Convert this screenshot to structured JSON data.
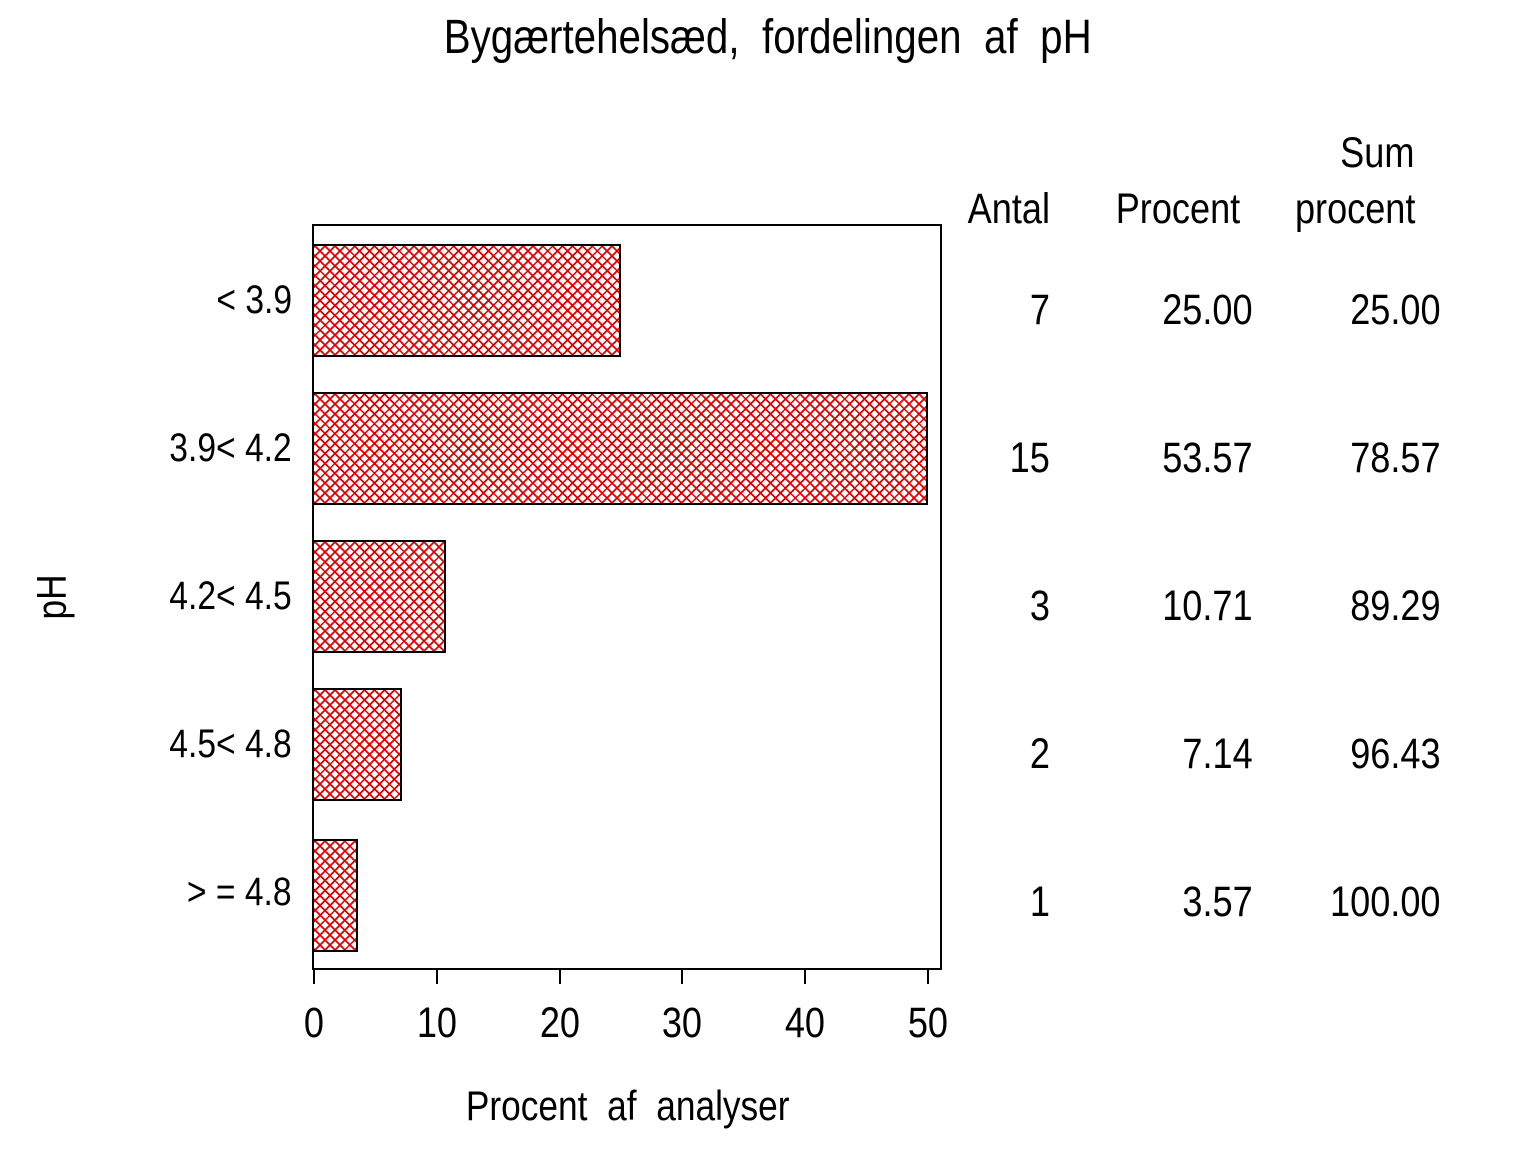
{
  "title": "Bygærtehelsæd, fordelingen af pH",
  "y_axis_title": "pH",
  "x_axis_title": "Procent af analyser",
  "table": {
    "header_sum_line1": "Sum",
    "header_antal": "Antal",
    "header_procent": "Procent",
    "header_sum_line2": "procent"
  },
  "rows": [
    {
      "category": "< 3.9",
      "antal": "7",
      "procent": "25.00",
      "sum": "25.00"
    },
    {
      "category": "3.9< 4.2",
      "antal": "15",
      "procent": "53.57",
      "sum": "78.57"
    },
    {
      "category": "4.2< 4.5",
      "antal": "3",
      "procent": "10.71",
      "sum": "89.29"
    },
    {
      "category": "4.5< 4.8",
      "antal": "2",
      "procent": "7.14",
      "sum": "96.43"
    },
    {
      "category": "> = 4.8",
      "antal": "1",
      "procent": "3.57",
      "sum": "100.00"
    }
  ],
  "chart_data": {
    "type": "bar",
    "orientation": "horizontal",
    "title": "Bygærtehelsæd, fordelingen af pH",
    "categories": [
      "< 3.9",
      "3.9< 4.2",
      "4.2< 4.5",
      "4.5< 4.8",
      "> = 4.8"
    ],
    "values": [
      25.0,
      53.57,
      10.71,
      7.14,
      3.57
    ],
    "series": [
      {
        "name": "Antal",
        "values": [
          7,
          15,
          3,
          2,
          1
        ]
      },
      {
        "name": "Procent",
        "values": [
          25.0,
          53.57,
          10.71,
          7.14,
          3.57
        ]
      },
      {
        "name": "Sum procent",
        "values": [
          25.0,
          78.57,
          89.29,
          96.43,
          100.0
        ]
      }
    ],
    "xlabel": "Procent af analyser",
    "ylabel": "pH",
    "xlim": [
      0,
      51.2
    ],
    "xticks": [
      0,
      10,
      20,
      30,
      40,
      50
    ],
    "clip_max": 50,
    "grid": false,
    "frame": true,
    "bar_fill": "crosshatch",
    "hatch_color": "#e00000",
    "bar_border_color": "#000000",
    "background_color": "#ffffff"
  }
}
